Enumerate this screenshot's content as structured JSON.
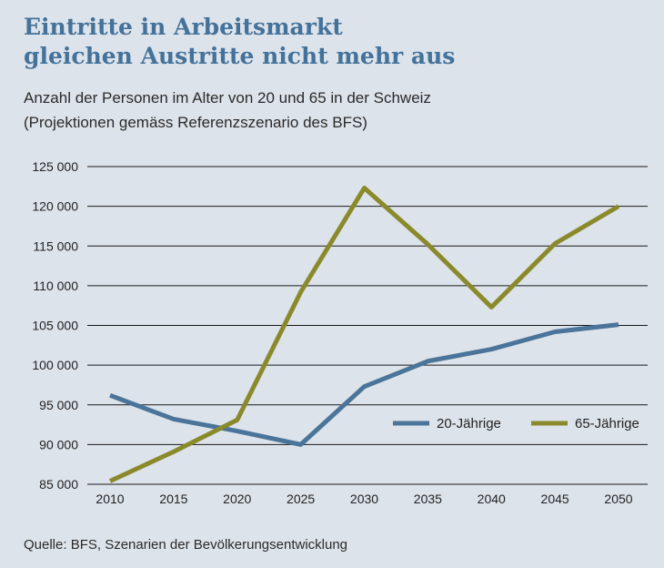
{
  "title": {
    "line1": "Eintritte in Arbeitsmarkt",
    "line2": "gleichen Austritte nicht mehr aus"
  },
  "subtitle": {
    "line1": "Anzahl der Personen im Alter von 20 und 65 in der Schweiz",
    "line2": "(Projektionen gemäss Referenzszenario des BFS)"
  },
  "source": "Quelle: BFS, Szenarien der Bevölkerungsentwicklung",
  "colors": {
    "background": "#dde3ea",
    "title": "#44729a",
    "series_20": "#4a7499",
    "series_65": "#8a8a2c"
  },
  "chart_data": {
    "type": "line",
    "x": [
      2010,
      2015,
      2020,
      2025,
      2030,
      2035,
      2040,
      2045,
      2050
    ],
    "x_tick_labels": [
      "2010",
      "2015",
      "2020",
      "2025",
      "2030",
      "2035",
      "2040",
      "2045",
      "2050"
    ],
    "y_ticks": [
      85000,
      90000,
      95000,
      100000,
      105000,
      110000,
      115000,
      120000,
      125000
    ],
    "y_tick_labels": [
      "85 000",
      "90 000",
      "95 000",
      "100 000",
      "105 000",
      "110 000",
      "115 000",
      "120 000",
      "125 000"
    ],
    "ylim": [
      85000,
      125000
    ],
    "grid": "horizontal",
    "legend_position": "lower-right",
    "series": [
      {
        "name": "20-Jährige",
        "color": "#4a7499",
        "values": [
          96200,
          93200,
          91700,
          90000,
          97300,
          100500,
          102000,
          104200,
          105100
        ]
      },
      {
        "name": "65-Jährige",
        "color": "#8a8a2c",
        "values": [
          85400,
          89100,
          93100,
          109200,
          122300,
          115200,
          107300,
          115300,
          120000
        ]
      }
    ]
  }
}
